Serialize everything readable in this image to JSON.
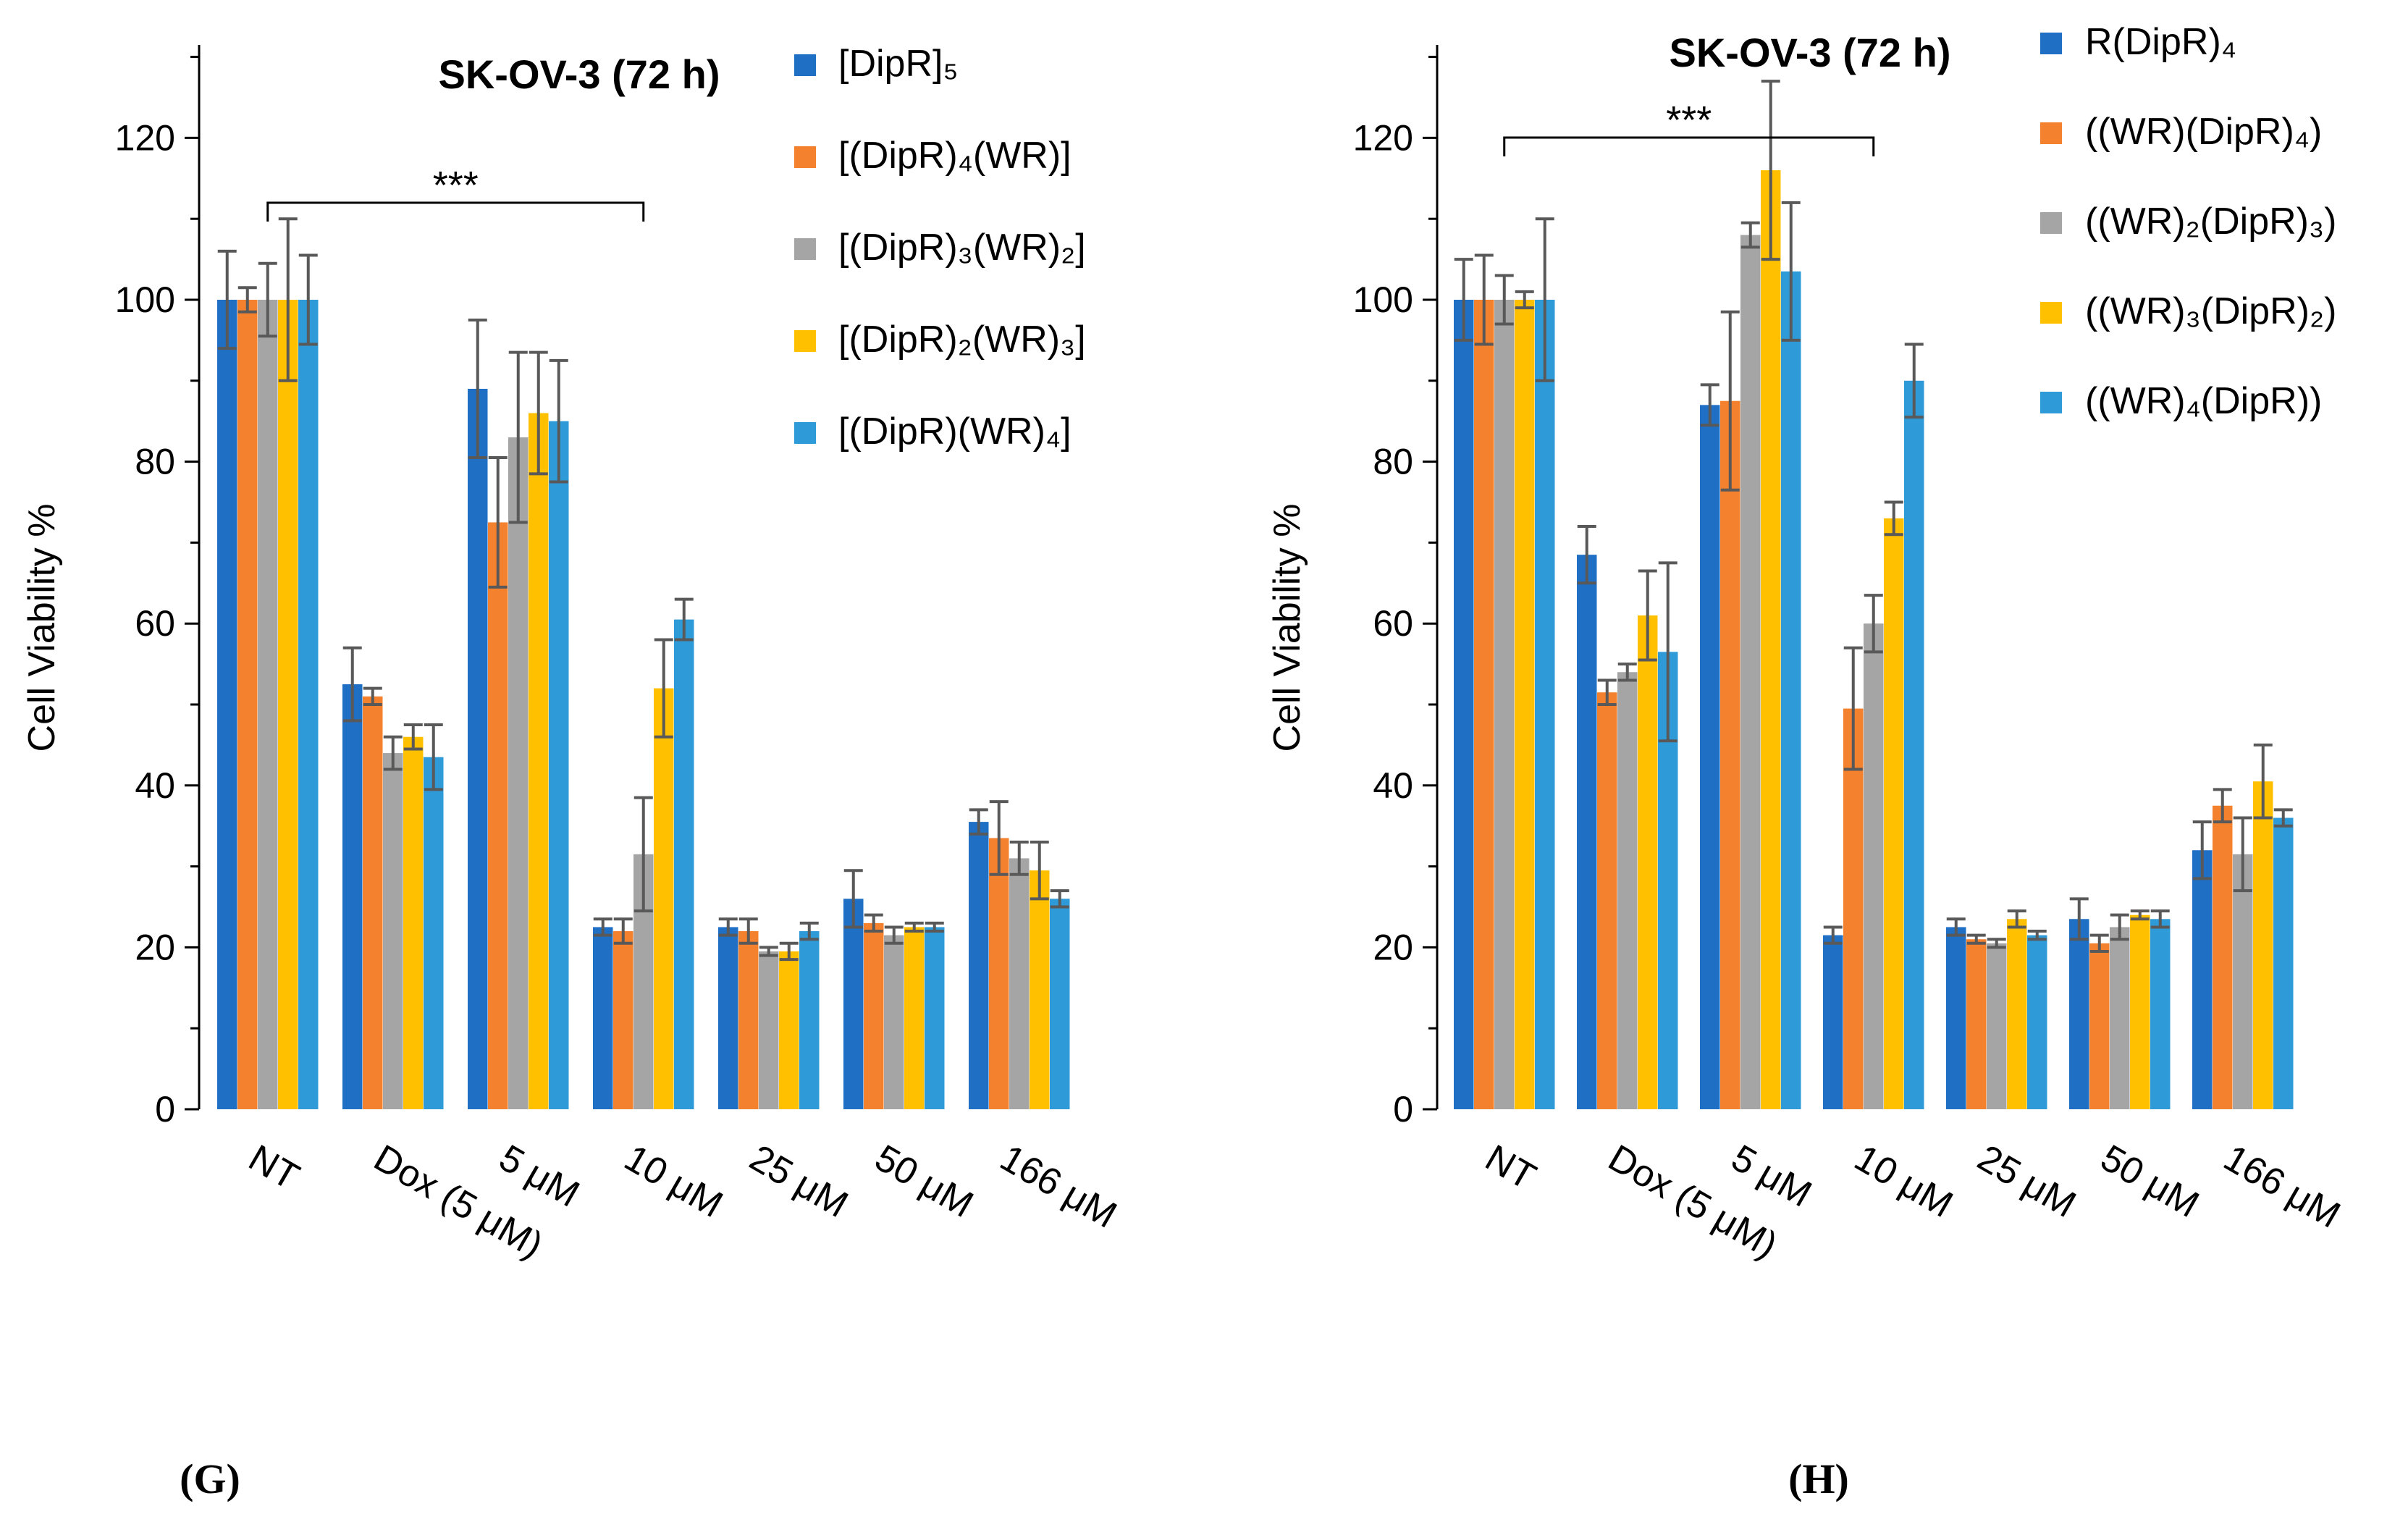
{
  "chart_data": [
    {
      "type": "bar",
      "panel_label": "(G)",
      "title": "SK-OV-3 (72 h)",
      "xlabel": "",
      "ylabel": "Cell Viability %",
      "ylim": [
        0,
        130
      ],
      "yticks": [
        0,
        20,
        40,
        60,
        80,
        100,
        120
      ],
      "categories": [
        "NT",
        "Dox (5 μM)",
        "5 μM",
        "10 μM",
        "25 μM",
        "50 μM",
        "166 μM"
      ],
      "legend_position": "top-right",
      "significance": {
        "from_category": 0,
        "to_category": 3,
        "label": "***"
      },
      "series": [
        {
          "name": "[DipR]₅",
          "color": "#1F6FC5",
          "values": [
            100,
            52.5,
            89,
            22.5,
            22.5,
            26,
            35.5
          ],
          "errors": [
            6,
            4.5,
            8.5,
            1,
            1,
            3.5,
            1.5
          ]
        },
        {
          "name": "[(DipR)₄(WR)]",
          "color": "#F4812E",
          "values": [
            100,
            51,
            72.5,
            22,
            22,
            23,
            33.5
          ],
          "errors": [
            1.5,
            1,
            8,
            1.5,
            1.5,
            1,
            4.5
          ]
        },
        {
          "name": "[(DipR)₃(WR)₂]",
          "color": "#A5A5A5",
          "values": [
            100,
            44,
            83,
            31.5,
            19.5,
            21.5,
            31
          ],
          "errors": [
            4.5,
            2,
            10.5,
            7,
            0.5,
            1,
            2
          ]
        },
        {
          "name": "[(DipR)₂(WR)₃]",
          "color": "#FFC000",
          "values": [
            100,
            46,
            86,
            52,
            19.5,
            22.5,
            29.5
          ],
          "errors": [
            10,
            1.5,
            7.5,
            6,
            1,
            0.5,
            3.5
          ]
        },
        {
          "name": "[(DipR)(WR)₄]",
          "color": "#2E9AD8",
          "values": [
            100,
            43.5,
            85,
            60.5,
            22,
            22.5,
            26
          ],
          "errors": [
            5.5,
            4,
            7.5,
            2.5,
            1,
            0.5,
            1
          ]
        }
      ]
    },
    {
      "type": "bar",
      "panel_label": "(H)",
      "title": "SK-OV-3 (72 h)",
      "xlabel": "",
      "ylabel": "Cell Viability %",
      "ylim": [
        0,
        130
      ],
      "yticks": [
        0,
        20,
        40,
        60,
        80,
        100,
        120
      ],
      "categories": [
        "NT",
        "Dox (5 μM)",
        "5 μM",
        "10 μM",
        "25 μM",
        "50 μM",
        "166 μM"
      ],
      "legend_position": "top-right",
      "significance": {
        "from_category": 0,
        "to_category": 3,
        "label": "***"
      },
      "series": [
        {
          "name": "R(DipR)₄",
          "color": "#1F6FC5",
          "values": [
            100,
            68.5,
            87,
            21.5,
            22.5,
            23.5,
            32
          ],
          "errors": [
            5,
            3.5,
            2.5,
            1,
            1,
            2.5,
            3.5
          ]
        },
        {
          "name": "((WR)(DipR)₄)",
          "color": "#F4812E",
          "values": [
            100,
            51.5,
            87.5,
            49.5,
            21,
            20.5,
            37.5
          ],
          "errors": [
            5.5,
            1.5,
            11,
            7.5,
            0.5,
            1,
            2
          ]
        },
        {
          "name": "((WR)₂(DipR)₃)",
          "color": "#A5A5A5",
          "values": [
            100,
            54,
            108,
            60,
            20.5,
            22.5,
            31.5
          ],
          "errors": [
            3,
            1,
            1.5,
            3.5,
            0.5,
            1.5,
            4.5
          ]
        },
        {
          "name": "((WR)₃(DipR)₂)",
          "color": "#FFC000",
          "values": [
            100,
            61,
            116,
            73,
            23.5,
            24,
            40.5
          ],
          "errors": [
            1,
            5.5,
            11,
            2,
            1,
            0.5,
            4.5
          ]
        },
        {
          "name": "((WR)₄(DipR))",
          "color": "#2E9AD8",
          "values": [
            100,
            56.5,
            103.5,
            90,
            21.5,
            23.5,
            36
          ],
          "errors": [
            10,
            11,
            8.5,
            4.5,
            0.5,
            1,
            1
          ]
        }
      ]
    }
  ]
}
